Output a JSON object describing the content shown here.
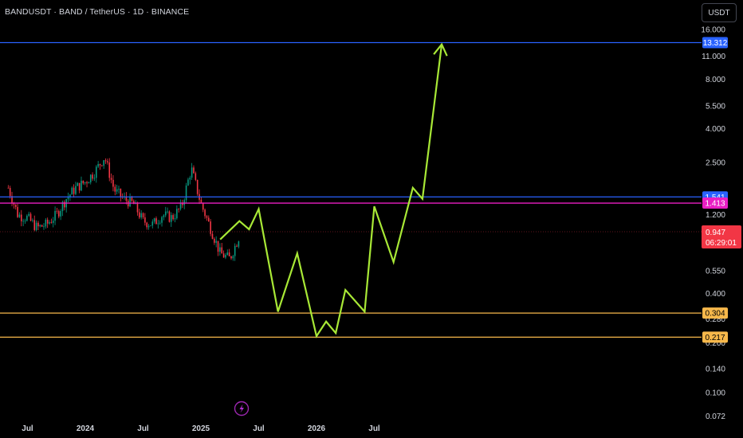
{
  "header": {
    "symbol_title": "BANDUSDT · BAND / TetherUS · 1D · BINANCE",
    "currency_label": "USDT"
  },
  "chart_data": {
    "type": "candlestick",
    "y_scale": "log",
    "ylim": [
      0.072,
      20
    ],
    "price_ticks": [
      "16.000",
      "11.000",
      "8.000",
      "5.500",
      "4.000",
      "2.500",
      "1.200",
      "0.550",
      "0.400",
      "0.280",
      "0.200",
      "0.140",
      "0.100",
      "0.072"
    ],
    "time_ticks": [
      "Jul",
      "2024",
      "Jul",
      "2025",
      "Jul",
      "2026",
      "Jul"
    ],
    "current_price": {
      "label": "0.947",
      "countdown": "06:29:01",
      "value": 0.947,
      "color": "#f23645"
    },
    "horizontal_levels": [
      {
        "value": 13.312,
        "label": "13.312",
        "color": "#2962ff"
      },
      {
        "value": 1.541,
        "label": "1.541",
        "color": "#2962ff"
      },
      {
        "value": 1.413,
        "label": "1.413",
        "color": "#e91ec4"
      },
      {
        "value": 0.304,
        "label": "0.304",
        "color": "#f7b84b"
      },
      {
        "value": 0.217,
        "label": "0.217",
        "color": "#f7b84b"
      }
    ],
    "forecast_path_color": "#a8e836",
    "forecast_path": [
      [
        "2025-03",
        0.85
      ],
      [
        "2025-05",
        1.1
      ],
      [
        "2025-06",
        0.98
      ],
      [
        "2025-07",
        1.3
      ],
      [
        "2025-09",
        0.31
      ],
      [
        "2025-11",
        0.7
      ],
      [
        "2026-01",
        0.22
      ],
      [
        "2026-02",
        0.27
      ],
      [
        "2026-03",
        0.23
      ],
      [
        "2026-04",
        0.42
      ],
      [
        "2026-06",
        0.31
      ],
      [
        "2026-07",
        1.35
      ],
      [
        "2026-09",
        0.62
      ],
      [
        "2026-11",
        1.75
      ],
      [
        "2026-12",
        1.5
      ],
      [
        "2027-02",
        13.0
      ]
    ],
    "price_series_note_removed": true,
    "price_series": [
      [
        "2023-05",
        1.75
      ],
      [
        "2023-06",
        1.2
      ],
      [
        "2023-07",
        1.15
      ],
      [
        "2023-08",
        1.0
      ],
      [
        "2023-09",
        1.05
      ],
      [
        "2023-10",
        1.2
      ],
      [
        "2023-11",
        1.5
      ],
      [
        "2023-12",
        1.75
      ],
      [
        "2024-01",
        1.9
      ],
      [
        "2024-02",
        2.2
      ],
      [
        "2024-03",
        2.7
      ],
      [
        "2024-04",
        1.7
      ],
      [
        "2024-05",
        1.5
      ],
      [
        "2024-06",
        1.4
      ],
      [
        "2024-07",
        1.1
      ],
      [
        "2024-08",
        1.05
      ],
      [
        "2024-09",
        1.2
      ],
      [
        "2024-10",
        1.15
      ],
      [
        "2024-11",
        1.35
      ],
      [
        "2024-12",
        2.3
      ],
      [
        "2025-01",
        1.4
      ],
      [
        "2025-02",
        1.0
      ],
      [
        "2025-03",
        0.7
      ],
      [
        "2025-04",
        0.65
      ],
      [
        "2025-05",
        0.9
      ]
    ]
  }
}
